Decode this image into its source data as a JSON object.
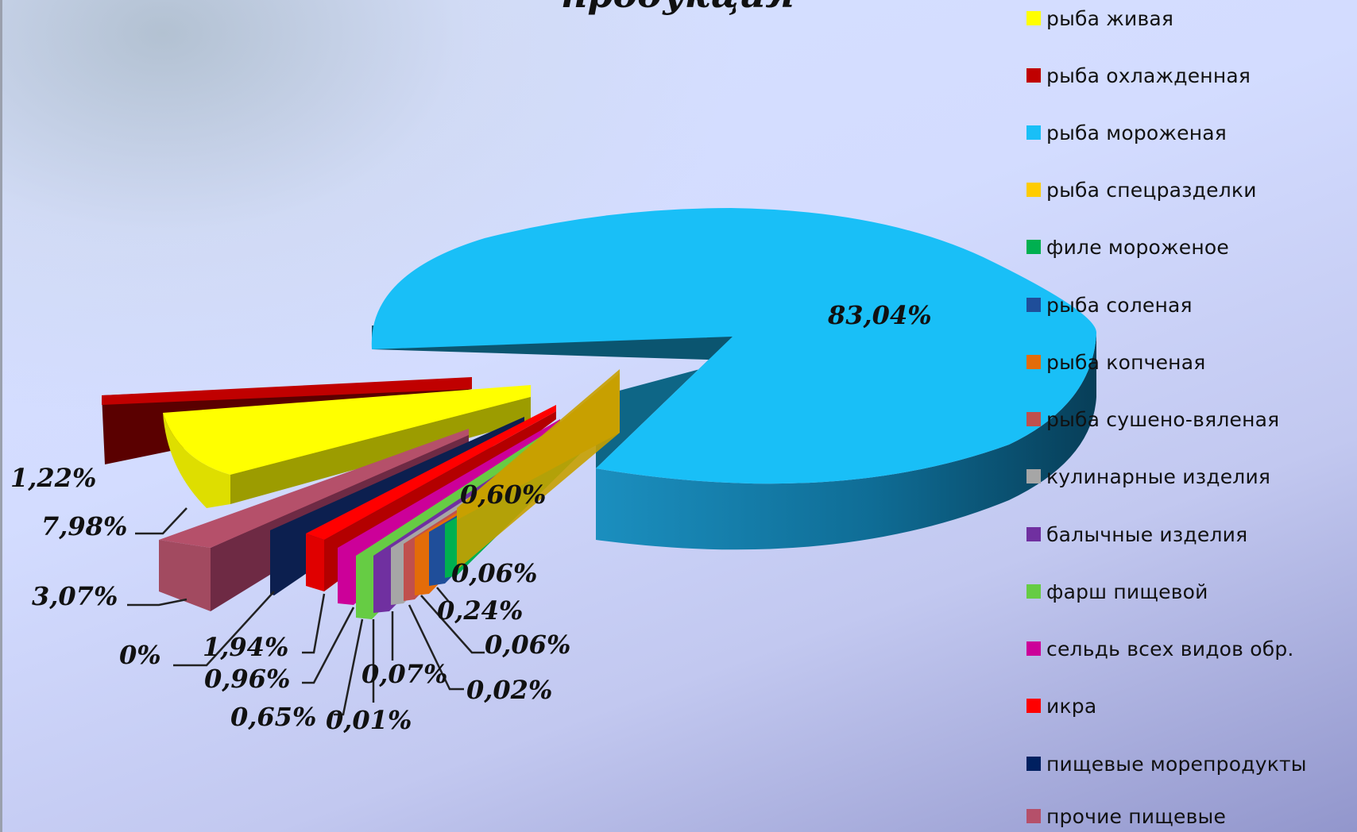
{
  "chart_data": {
    "type": "pie",
    "title": "продукция",
    "legend_position": "right",
    "slices": [
      {
        "label": "рыба живая",
        "value": 7.98,
        "value_label": "7,98%",
        "color": "#ffff00"
      },
      {
        "label": "рыба охлажденная",
        "value": 1.22,
        "value_label": "1,22%",
        "color": "#c00000"
      },
      {
        "label": "рыба мороженая",
        "value": 83.04,
        "value_label": "83,04%",
        "color": "#19bff7"
      },
      {
        "label": "рыба спецразделки",
        "value": 0.6,
        "value_label": "0,60%",
        "color": "#ffcc00"
      },
      {
        "label": "филе мороженое",
        "value": 0.06,
        "value_label": "0,06%",
        "color": "#00b050"
      },
      {
        "label": "рыба соленая",
        "value": 0.24,
        "value_label": "0,24%",
        "color": "#1f4e9a"
      },
      {
        "label": "рыба копченая",
        "value": 0.06,
        "value_label": "0,06%",
        "color": "#e36c09"
      },
      {
        "label": "рыба сушено-вяленая",
        "value": 0.02,
        "value_label": "0,02%",
        "color": "#c0504d"
      },
      {
        "label": "кулинарные изделия",
        "value": 0.07,
        "value_label": "0,07%",
        "color": "#a6a6a6"
      },
      {
        "label": "балычные изделия",
        "value": 0.01,
        "value_label": "0,01%",
        "color": "#7030a0"
      },
      {
        "label": "фарш пищевой",
        "value": 0.65,
        "value_label": "0,65%",
        "color": "#66cc44"
      },
      {
        "label": "сельдь всех видов обр.",
        "value": 0.96,
        "value_label": "0,96%",
        "color": "#cc0099"
      },
      {
        "label": "икра",
        "value": 1.94,
        "value_label": "1,94%",
        "color": "#ff0000"
      },
      {
        "label": "пищевые морепродукты",
        "value": 0,
        "value_label": "0%",
        "color": "#002060"
      },
      {
        "label": "прочие пищевые",
        "value": 3.07,
        "value_label": "3,07%",
        "color": "#b5506a"
      }
    ]
  }
}
